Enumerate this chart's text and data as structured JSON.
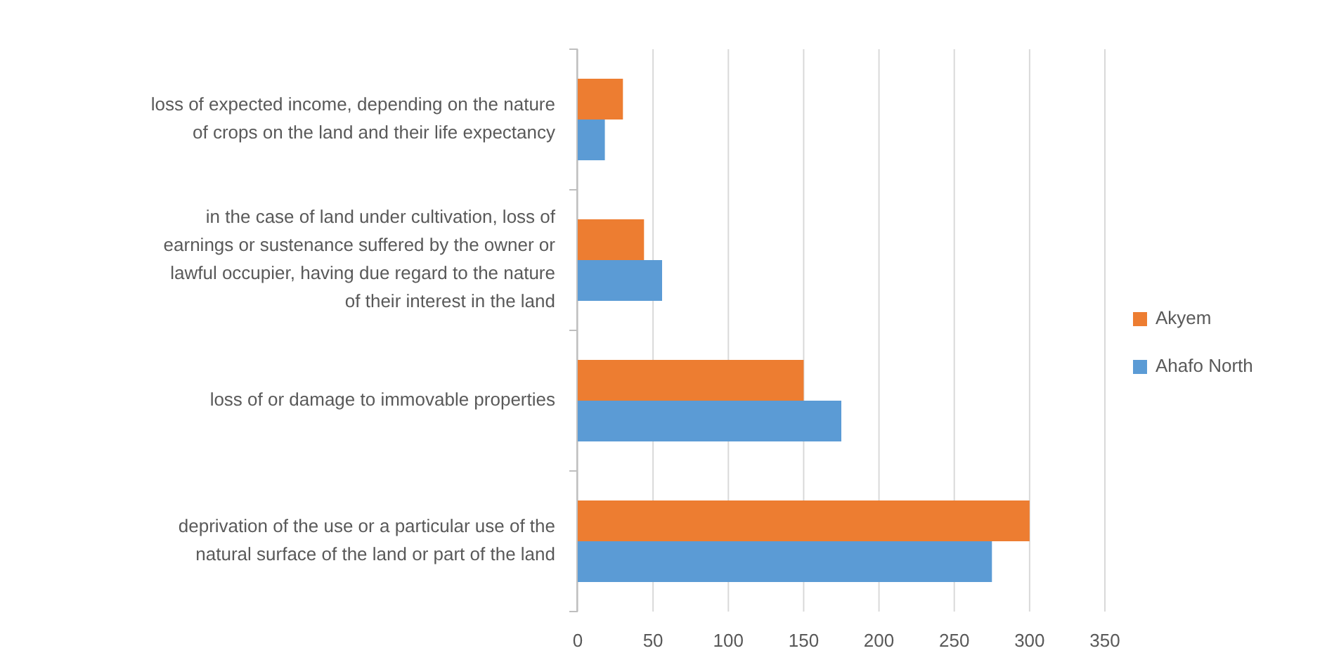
{
  "chart_data": {
    "type": "bar",
    "orientation": "horizontal",
    "categories": [
      "loss of expected income, depending on the nature of crops on the land and their life expectancy",
      "in the case of land under cultivation, loss of earnings or sustenance suffered by the owner or lawful occupier, having due regard to the nature of their interest in the land",
      "loss of or damage to immovable properties",
      "deprivation of the use or a particular use of the natural surface of the land or part of the land"
    ],
    "series": [
      {
        "name": "Akyem",
        "color": "#ed7d31",
        "values": [
          30,
          44,
          150,
          300
        ]
      },
      {
        "name": "Ahafo North",
        "color": "#5b9bd5",
        "values": [
          18,
          56,
          175,
          275
        ]
      }
    ],
    "xlim": [
      0,
      350
    ],
    "xticks": [
      0,
      50,
      100,
      150,
      200,
      250,
      300,
      350
    ],
    "grid": "x",
    "legend": "right"
  }
}
